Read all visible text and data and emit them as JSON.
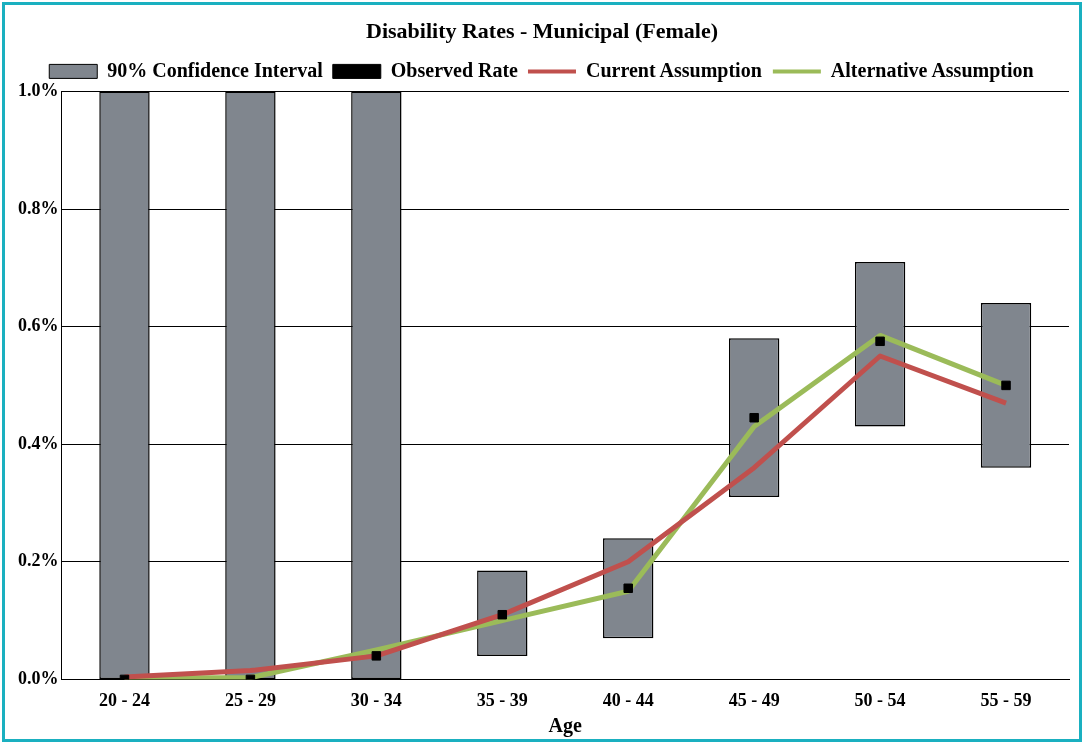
{
  "chart_data": {
    "type": "bar",
    "title": "Disability Rates - Municipal (Female)",
    "xlabel": "Age",
    "categories": [
      "20 - 24",
      "25 - 29",
      "30 - 34",
      "35 - 39",
      "40 - 44",
      "45 - 49",
      "50 - 54",
      "55 - 59"
    ],
    "series": [
      {
        "name": "90% Confidence Interval",
        "color": "#80868e",
        "base": [
          0,
          0,
          0,
          0.04,
          0.07,
          0.31,
          0.43,
          0.36
        ],
        "values": [
          1.0,
          1.0,
          1.0,
          0.145,
          0.17,
          0.27,
          0.28,
          0.28
        ]
      },
      {
        "name": "Observed Rate",
        "type": "scatter",
        "marker": "square",
        "color": "#000000",
        "x": [
          "20 - 24",
          "25 - 29",
          "30 - 34",
          "35 - 39",
          "40 - 44",
          "45 - 49",
          "50 - 54",
          "55 - 59"
        ],
        "values": [
          0,
          0,
          0.04,
          0.11,
          0.155,
          0.445,
          0.575,
          0.5
        ]
      },
      {
        "name": "Current Assumption",
        "type": "line",
        "color": "#c0504d",
        "values": [
          0.004,
          0.015,
          0.04,
          0.11,
          0.2,
          0.36,
          0.55,
          0.47
        ]
      },
      {
        "name": "Alternative Assumption",
        "type": "line",
        "color": "#9bbb59",
        "values": [
          0.003,
          0.003,
          0.05,
          0.1,
          0.15,
          0.43,
          0.585,
          0.5
        ]
      }
    ],
    "ylim": [
      0,
      1.0
    ],
    "yticks": [
      {
        "value": 0,
        "label": "0.0%"
      },
      {
        "value": 0.2,
        "label": "0.2%"
      },
      {
        "value": 0.4,
        "label": "0.4%"
      },
      {
        "value": 0.6,
        "label": "0.6%"
      },
      {
        "value": 0.8,
        "label": "0.8%"
      },
      {
        "value": 1.0,
        "label": "1.0%"
      }
    ],
    "grid": "y",
    "legend": "top"
  }
}
